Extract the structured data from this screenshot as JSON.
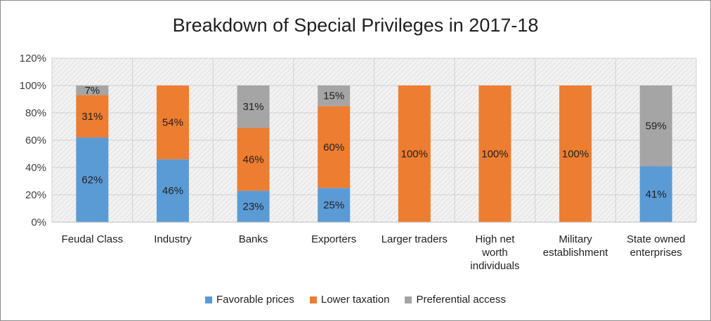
{
  "chart_data": {
    "type": "bar",
    "stacked": true,
    "title": "Breakdown of Special Privileges in 2017-18",
    "categories": [
      "Feudal Class",
      "Industry",
      "Banks",
      "Exporters",
      "Larger traders",
      "High net worth individuals",
      "Military establishment",
      "State owned enterprises"
    ],
    "category_lines": [
      [
        "Feudal Class"
      ],
      [
        "Industry"
      ],
      [
        "Banks"
      ],
      [
        "Exporters"
      ],
      [
        "Larger traders"
      ],
      [
        "High net",
        "worth",
        "individuals"
      ],
      [
        "Military",
        "establishment"
      ],
      [
        "State owned",
        "enterprises"
      ]
    ],
    "series": [
      {
        "name": "Favorable prices",
        "color": "#5b9bd5",
        "values": [
          62,
          46,
          23,
          25,
          0,
          0,
          0,
          41
        ],
        "labels": [
          "62%",
          "46%",
          "23%",
          "25%",
          "",
          "",
          "",
          "41%"
        ]
      },
      {
        "name": "Lower taxation",
        "color": "#ed7d31",
        "values": [
          31,
          54,
          46,
          60,
          100,
          100,
          100,
          0
        ],
        "labels": [
          "31%",
          "54%",
          "46%",
          "60%",
          "100%",
          "100%",
          "100%",
          ""
        ]
      },
      {
        "name": "Preferential access",
        "color": "#a5a5a5",
        "values": [
          7,
          0,
          31,
          15,
          0,
          0,
          0,
          59
        ],
        "labels": [
          "7%",
          "",
          "31%",
          "15%",
          "",
          "",
          "",
          "59%"
        ]
      }
    ],
    "yticks": [
      "0%",
      "20%",
      "40%",
      "60%",
      "80%",
      "100%",
      "120%"
    ],
    "ylim": [
      0,
      120
    ],
    "xlabel": "",
    "ylabel": "",
    "grid": true,
    "legend_position": "bottom"
  }
}
